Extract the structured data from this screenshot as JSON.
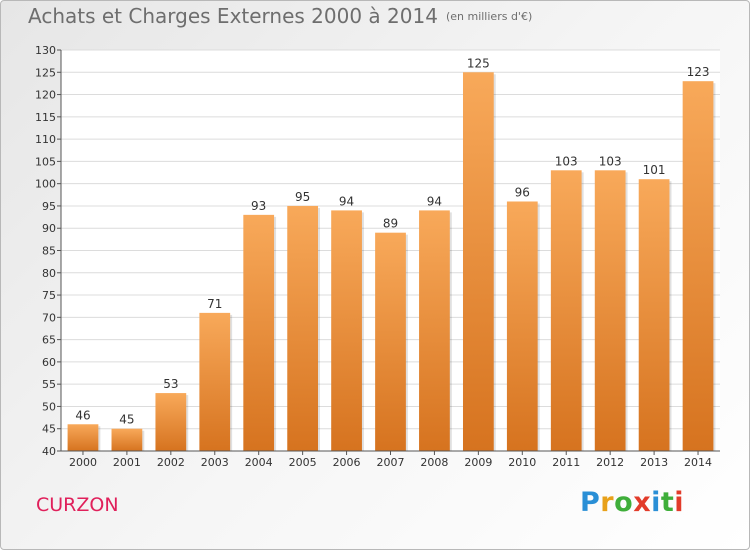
{
  "title": "Achats et Charges Externes 2000 à 2014",
  "unit": "(en milliers d'€)",
  "location": "CURZON",
  "brand": {
    "letters": [
      "P",
      "r",
      "o",
      "x",
      "i",
      "t",
      "i"
    ],
    "colors": [
      "#2a8fd6",
      "#e8a11a",
      "#3fae3a",
      "#e23b2a",
      "#2a8fd6",
      "#3fae3a",
      "#e23b2a"
    ]
  },
  "colors": {
    "bar_light": "#f8a95a",
    "bar_dark": "#d6731f",
    "grid": "#dcdcdc",
    "axis": "#555555"
  },
  "chart_data": {
    "type": "bar",
    "categories": [
      "2000",
      "2001",
      "2002",
      "2003",
      "2004",
      "2005",
      "2006",
      "2007",
      "2008",
      "2009",
      "2010",
      "2011",
      "2012",
      "2013",
      "2014"
    ],
    "values": [
      46,
      45,
      53,
      71,
      93,
      95,
      94,
      89,
      94,
      125,
      96,
      103,
      103,
      101,
      123
    ],
    "title": "Achats et Charges Externes 2000 à 2014",
    "xlabel": "",
    "ylabel": "",
    "ylim": [
      40,
      130
    ],
    "yticks": [
      40,
      45,
      50,
      55,
      60,
      65,
      70,
      75,
      80,
      85,
      90,
      95,
      100,
      105,
      110,
      115,
      120,
      125,
      130
    ],
    "grid": true
  }
}
